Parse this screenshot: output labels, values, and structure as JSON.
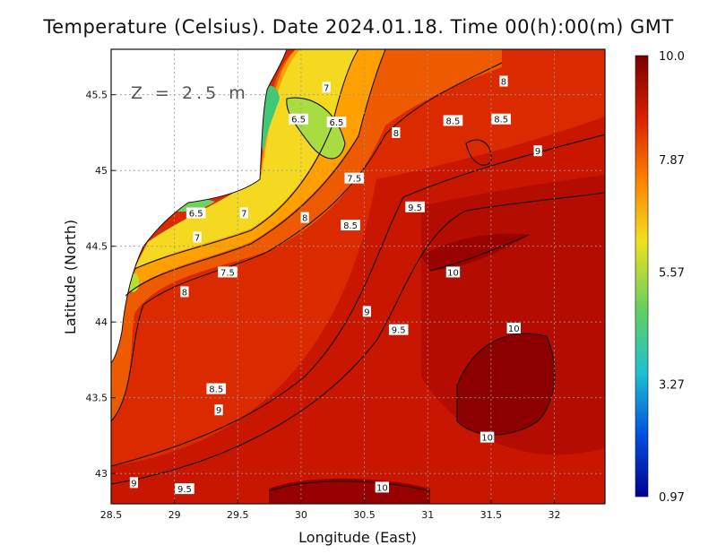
{
  "title": "Temperature (Celsius). Date 2024.01.18. Time 00(h):00(m) GMT",
  "depth_label": "Z = 2.5 m",
  "x_axis": {
    "label": "Longitude (East)",
    "range": [
      28.5,
      32.4
    ],
    "ticks": [
      "28.5",
      "29",
      "29.5",
      "30",
      "30.5",
      "31",
      "31.5",
      "32"
    ]
  },
  "y_axis": {
    "label": "Latitude (North)",
    "range": [
      42.8,
      45.8
    ],
    "ticks": [
      "43",
      "43.5",
      "44",
      "44.5",
      "45",
      "45.5"
    ]
  },
  "colorbar": {
    "labels": [
      "10.0",
      "7.87",
      "5.57",
      "3.27",
      "0.97"
    ],
    "min": 0.97,
    "max": 10.0,
    "colors": [
      "#7a0000",
      "#d62000",
      "#ff8000",
      "#f0e020",
      "#60d060",
      "#20c0d0",
      "#0050e0",
      "#000090"
    ]
  },
  "contour_labels": [
    {
      "text": "7",
      "lon": 30.2,
      "lat": 45.55
    },
    {
      "text": "6.5",
      "lon": 29.98,
      "lat": 45.34
    },
    {
      "text": "6.5",
      "lon": 30.28,
      "lat": 45.32
    },
    {
      "text": "8",
      "lon": 31.6,
      "lat": 45.59
    },
    {
      "text": "8.5",
      "lon": 31.2,
      "lat": 45.33
    },
    {
      "text": "8.5",
      "lon": 31.58,
      "lat": 45.34
    },
    {
      "text": "8",
      "lon": 30.75,
      "lat": 45.25
    },
    {
      "text": "9",
      "lon": 31.87,
      "lat": 45.13
    },
    {
      "text": "7.5",
      "lon": 30.42,
      "lat": 44.95
    },
    {
      "text": "9.5",
      "lon": 30.9,
      "lat": 44.76
    },
    {
      "text": "6.5",
      "lon": 29.17,
      "lat": 44.72
    },
    {
      "text": "7",
      "lon": 29.55,
      "lat": 44.72
    },
    {
      "text": "8",
      "lon": 30.03,
      "lat": 44.69
    },
    {
      "text": "8.5",
      "lon": 30.39,
      "lat": 44.64
    },
    {
      "text": "7",
      "lon": 29.18,
      "lat": 44.56
    },
    {
      "text": "10",
      "lon": 31.2,
      "lat": 44.33
    },
    {
      "text": "7.5",
      "lon": 29.42,
      "lat": 44.33
    },
    {
      "text": "8",
      "lon": 29.08,
      "lat": 44.2
    },
    {
      "text": "9",
      "lon": 30.52,
      "lat": 44.07
    },
    {
      "text": "9.5",
      "lon": 30.77,
      "lat": 43.95
    },
    {
      "text": "10",
      "lon": 31.68,
      "lat": 43.96
    },
    {
      "text": "8.5",
      "lon": 29.33,
      "lat": 43.56
    },
    {
      "text": "9",
      "lon": 29.35,
      "lat": 43.42
    },
    {
      "text": "10",
      "lon": 31.47,
      "lat": 43.24
    },
    {
      "text": "9",
      "lon": 28.68,
      "lat": 42.94
    },
    {
      "text": "9.5",
      "lon": 29.08,
      "lat": 42.9
    },
    {
      "text": "10",
      "lon": 30.64,
      "lat": 42.91
    }
  ]
}
